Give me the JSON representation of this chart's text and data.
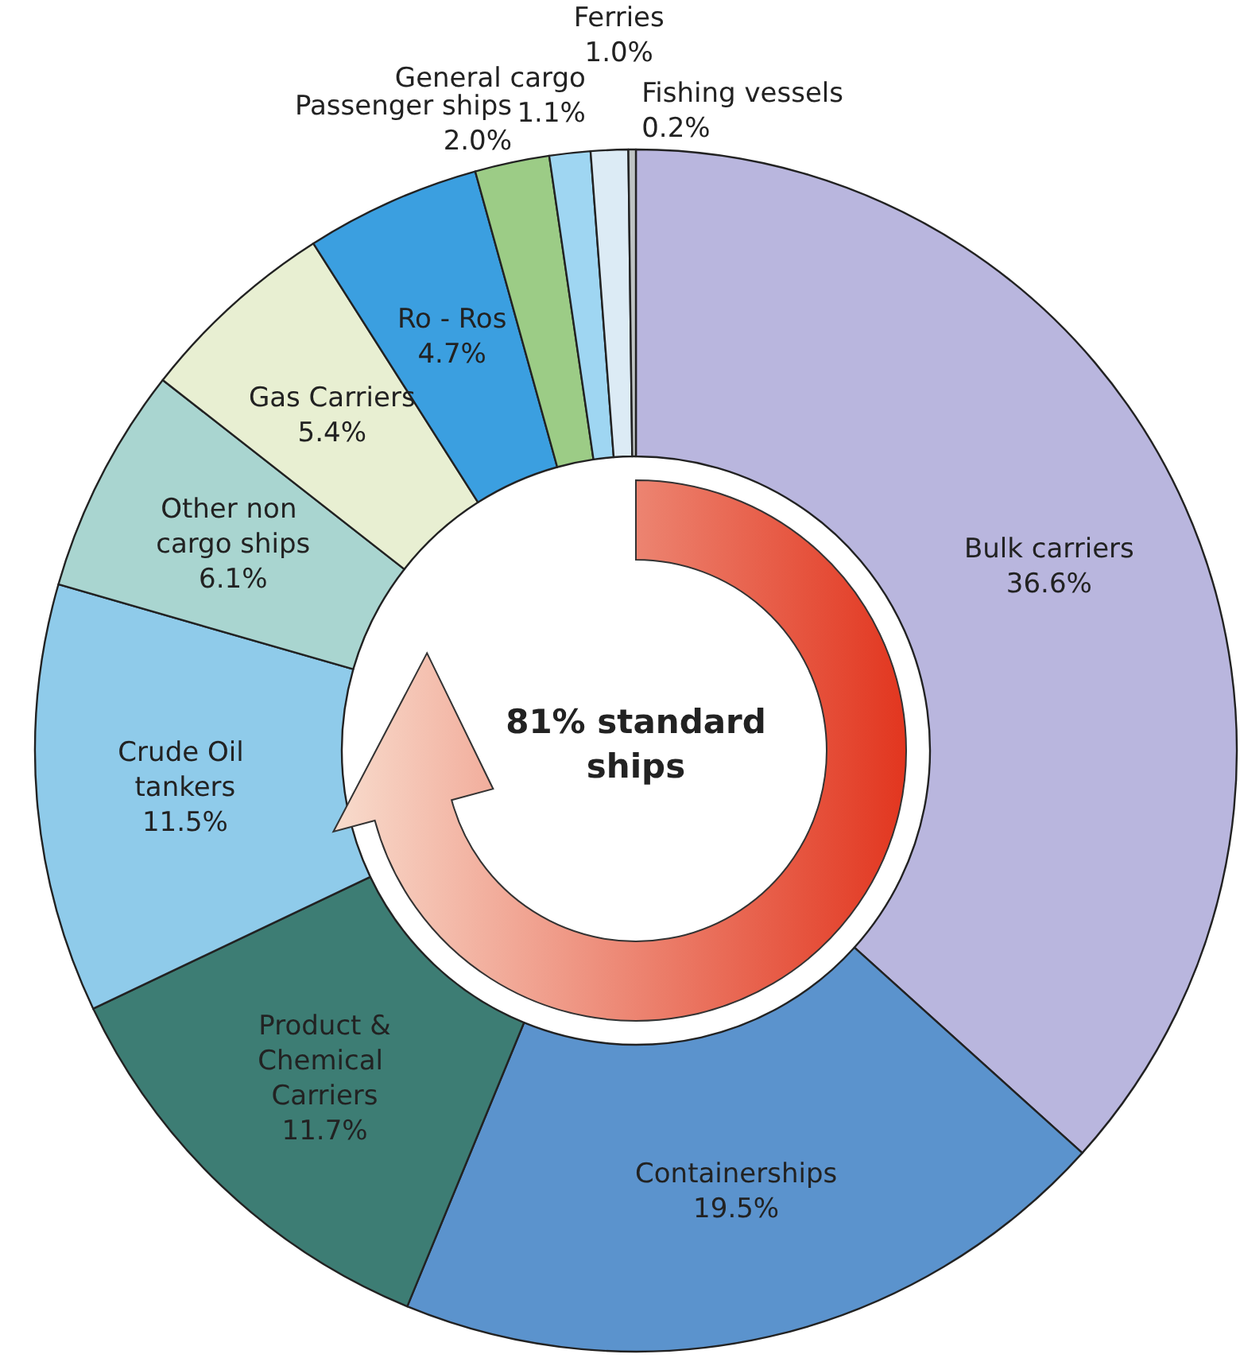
{
  "chart_data": {
    "type": "donut",
    "categories": [
      "Bulk carriers",
      "Containerships",
      "Product &Chemical Carriers",
      "Crude Oil tankers",
      "Other non cargo ships",
      "Gas Carriers",
      "Ro - Ros",
      "Passenger ships",
      "General cargo",
      "Ferries",
      "Fishing vessels"
    ],
    "values": [
      36.6,
      19.5,
      11.7,
      11.5,
      6.1,
      5.4,
      4.7,
      2.0,
      1.1,
      1.0,
      0.2
    ],
    "value_labels": [
      "36.6%",
      "19.5%",
      "11.7%",
      "11.5%",
      "6.1%",
      "5.4%",
      "4.7%",
      "2.0%",
      "1.1%",
      "1.0%",
      "0.2%"
    ],
    "colors": [
      "#b9b6de",
      "#5b93cd",
      "#3d7d74",
      "#8fcbea",
      "#a9d5d0",
      "#e8efd2",
      "#3b9fe0",
      "#9ccc86",
      "#9fd6f2",
      "#dcebf5",
      "#bfc4c4"
    ],
    "annotations": [
      "81% standard ships"
    ],
    "legend": false
  }
}
